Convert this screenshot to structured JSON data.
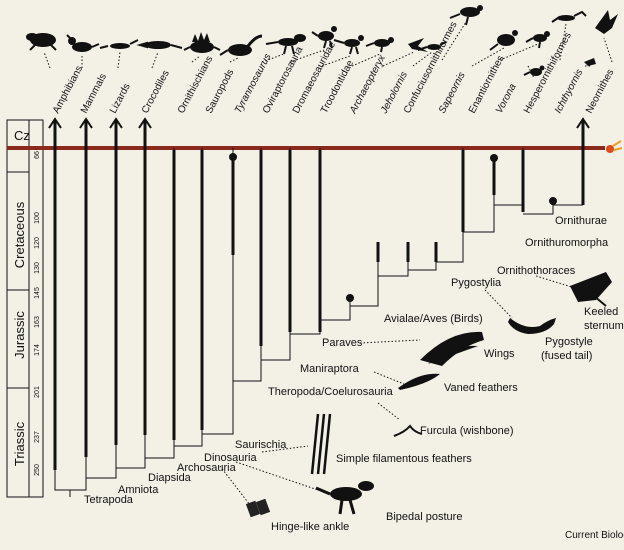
{
  "taxa": [
    {
      "label": "Amphibians",
      "italic": false
    },
    {
      "label": "Mammals",
      "italic": false
    },
    {
      "label": "Lizards",
      "italic": false
    },
    {
      "label": "Crocodiles",
      "italic": false
    },
    {
      "label": "Ornithischians",
      "italic": false
    },
    {
      "label": "Sauropods",
      "italic": false
    },
    {
      "label": "Tyrannosaurus",
      "italic": true
    },
    {
      "label": "Oviraptorosauria",
      "italic": false
    },
    {
      "label": "Dromaeosauridae",
      "italic": false
    },
    {
      "label": "Troodontidae",
      "italic": false
    },
    {
      "label": "Archaeopteryx",
      "italic": true
    },
    {
      "label": "Jeholornis",
      "italic": true
    },
    {
      "label": "Confuciusornithiformes",
      "italic": false
    },
    {
      "label": "Sapeornis",
      "italic": true
    },
    {
      "label": "Enantiornithes",
      "italic": false
    },
    {
      "label": "Vorona",
      "italic": true
    },
    {
      "label": "Hesperornithiformes",
      "italic": false
    },
    {
      "label": "Ichthyornis",
      "italic": true
    },
    {
      "label": "Neornithes",
      "italic": false
    }
  ],
  "nodes": {
    "tetrapoda": "Tetrapoda",
    "amniota": "Amniota",
    "diapsida": "Diapsida",
    "archosauria": "Archosauria",
    "dinosauria": "Dinosauria",
    "saurischia": "Saurischia",
    "theropoda": "Theropoda/Coelurosauria",
    "maniraptora": "Maniraptora",
    "paraves": "Paraves",
    "avialae": "Avialae/Aves (Birds)",
    "pygostylia": "Pygostylia",
    "ornithothoraces": "Ornithothoraces",
    "ornithuromorpha": "Ornithuromorpha",
    "ornithurae": "Ornithurae"
  },
  "traits": {
    "hinge_ankle": "Hinge-like ankle",
    "bipedal": "Bipedal posture",
    "filament_feathers": "Simple filamentous feathers",
    "furcula": "Furcula (wishbone)",
    "vaned_feathers": "Vaned feathers",
    "wings": "Wings",
    "pygostyle": "Pygostyle",
    "pygostyle_note": "(fused tail)",
    "keeled_1": "Keeled",
    "keeled_2": "sternum"
  },
  "periods": {
    "cz": "Cz",
    "cretaceous": "Cretaceous",
    "jurassic": "Jurassic",
    "triassic": "Triassic"
  },
  "ages": [
    "66",
    "100",
    "120",
    "130",
    "145",
    "163",
    "174",
    "201",
    "237",
    "250"
  ],
  "credit": "Current Biology",
  "colors": {
    "background": "#f3f0e6",
    "kpg_line": "#8a2a1c",
    "ink": "#111111"
  }
}
